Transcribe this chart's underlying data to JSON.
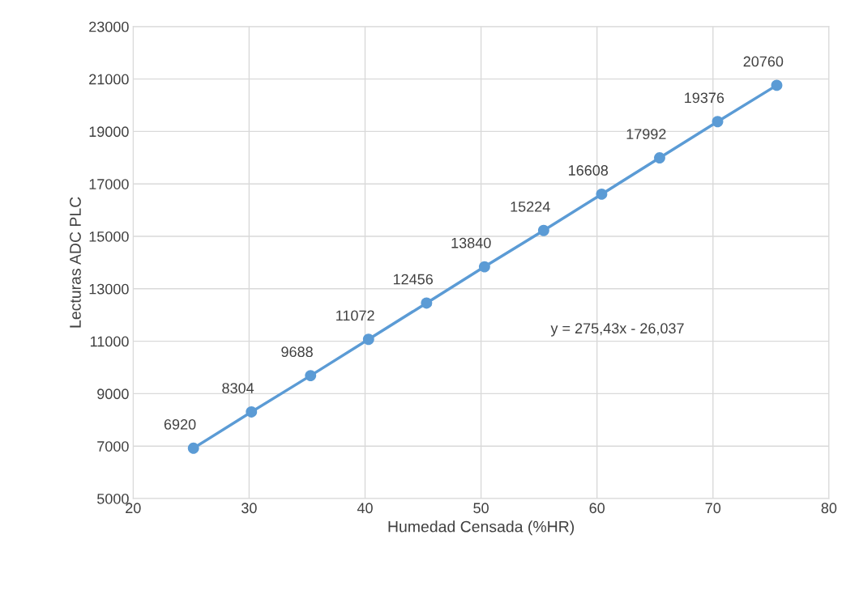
{
  "chart_data": {
    "type": "line",
    "xlabel": "Humedad Censada (%HR)",
    "ylabel": "Lecturas ADC PLC",
    "x": [
      25.2,
      30.2,
      35.3,
      40.3,
      45.3,
      50.3,
      55.4,
      60.4,
      65.4,
      70.4,
      75.5
    ],
    "series": [
      {
        "color": "#5b9bd5",
        "values": [
          6920,
          8304,
          9688,
          11072,
          12456,
          13840,
          15224,
          16608,
          17992,
          19376,
          20760
        ]
      }
    ],
    "xlim": [
      20,
      80
    ],
    "xticks": [
      20,
      30,
      40,
      50,
      60,
      70,
      80
    ],
    "ylim": [
      5000,
      23000
    ],
    "yticks": [
      5000,
      7000,
      9000,
      11000,
      13000,
      15000,
      17000,
      19000,
      21000,
      23000
    ],
    "grid": true,
    "marker": "circle",
    "line_style": "solid",
    "data_labels": true,
    "annotations": [
      "y = 275,43x - 26,037"
    ]
  }
}
